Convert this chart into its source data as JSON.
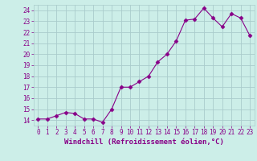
{
  "x": [
    0,
    1,
    2,
    3,
    4,
    5,
    6,
    7,
    8,
    9,
    10,
    11,
    12,
    13,
    14,
    15,
    16,
    17,
    18,
    19,
    20,
    21,
    22,
    23
  ],
  "y": [
    14.1,
    14.1,
    14.4,
    14.7,
    14.6,
    14.1,
    14.1,
    13.8,
    15.0,
    17.0,
    17.0,
    17.5,
    18.0,
    19.3,
    20.0,
    21.2,
    23.1,
    23.2,
    24.2,
    23.3,
    22.5,
    23.7,
    23.3,
    21.7
  ],
  "ylim_min": 13.5,
  "ylim_max": 24.5,
  "yticks": [
    14,
    15,
    16,
    17,
    18,
    19,
    20,
    21,
    22,
    23,
    24
  ],
  "xticks": [
    0,
    1,
    2,
    3,
    4,
    5,
    6,
    7,
    8,
    9,
    10,
    11,
    12,
    13,
    14,
    15,
    16,
    17,
    18,
    19,
    20,
    21,
    22,
    23
  ],
  "xlabel": "Windchill (Refroidissement éolien,°C)",
  "line_color": "#880088",
  "marker": "D",
  "marker_size": 2.5,
  "bg_color": "#cceee8",
  "grid_color": "#aacccc",
  "tick_color": "#880088",
  "label_color": "#880088",
  "tick_fontsize": 5.5,
  "label_fontsize": 6.5
}
